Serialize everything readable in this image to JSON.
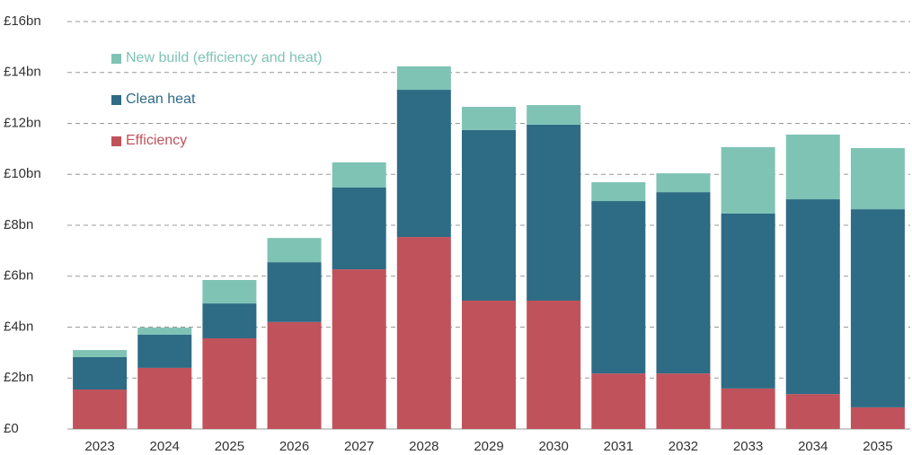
{
  "chart_data": {
    "type": "stacked_bar",
    "categories": [
      "2023",
      "2024",
      "2025",
      "2026",
      "2027",
      "2028",
      "2029",
      "2030",
      "2031",
      "2032",
      "2033",
      "2034",
      "2035"
    ],
    "series": [
      {
        "name": "Efficiency",
        "color": "#c0525c",
        "values": [
          1.55,
          2.4,
          3.56,
          4.2,
          6.27,
          7.54,
          5.04,
          5.04,
          2.18,
          2.18,
          1.59,
          1.37,
          0.85
        ]
      },
      {
        "name": "Clean heat",
        "color": "#2e6b85",
        "values": [
          1.27,
          1.3,
          1.37,
          2.35,
          3.21,
          5.78,
          6.7,
          6.91,
          6.77,
          7.12,
          6.87,
          7.65,
          7.78
        ]
      },
      {
        "name": "New build (efficiency and heat)",
        "color": "#7fc3b5",
        "values": [
          0.28,
          0.28,
          0.92,
          0.95,
          0.99,
          0.92,
          0.91,
          0.77,
          0.74,
          0.74,
          2.61,
          2.54,
          2.4
        ]
      }
    ],
    "ylim": [
      0,
      16
    ],
    "yticks": [
      {
        "value": 0,
        "label": "£0"
      },
      {
        "value": 2,
        "label": "£2bn"
      },
      {
        "value": 4,
        "label": "£4bn"
      },
      {
        "value": 6,
        "label": "£6bn"
      },
      {
        "value": 8,
        "label": "£8bn"
      },
      {
        "value": 10,
        "label": "£10bn"
      },
      {
        "value": 12,
        "label": "£12bn"
      },
      {
        "value": 14,
        "label": "£14bn"
      },
      {
        "value": 16,
        "label": "£16bn"
      }
    ],
    "grid": true
  }
}
